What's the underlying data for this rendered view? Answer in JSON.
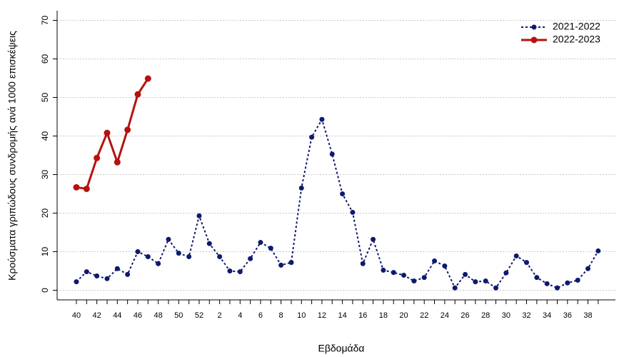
{
  "chart_data": {
    "type": "line",
    "x_label": "Εβδομάδα",
    "y_label": "Κρούσματα γριπώδους συνδρομής ανά 1000 επισκέψεις",
    "categories": [
      "40",
      null,
      "42",
      null,
      "44",
      null,
      "46",
      null,
      "48",
      null,
      "50",
      null,
      "52",
      null,
      "2",
      null,
      "4",
      null,
      "6",
      null,
      "8",
      null,
      "10",
      null,
      "12",
      null,
      "14",
      null,
      "16",
      null,
      "18",
      null,
      "20",
      null,
      "22",
      null,
      "24",
      null,
      "26",
      null,
      "28",
      null,
      "30",
      null,
      "32",
      null,
      "34",
      null,
      "36",
      null,
      "38",
      null
    ],
    "series": [
      {
        "name": "2021-2022",
        "color": "#0d1a6e",
        "style": "dotted",
        "values": [
          2.2,
          4.8,
          3.7,
          3.0,
          5.6,
          4.1,
          10.0,
          8.7,
          6.9,
          13.2,
          9.6,
          8.7,
          19.3,
          12.1,
          8.7,
          5.0,
          4.8,
          8.2,
          12.4,
          10.9,
          6.5,
          7.2,
          26.5,
          39.7,
          44.3,
          35.3,
          25.0,
          20.2,
          6.9,
          13.2,
          5.2,
          4.6,
          3.9,
          2.4,
          3.3,
          7.6,
          6.3,
          0.6,
          4.1,
          2.2,
          2.4,
          0.6,
          4.5,
          8.9,
          7.2,
          3.3,
          1.7,
          0.6,
          1.9,
          2.6,
          5.6,
          10.2
        ]
      },
      {
        "name": "2022-2023",
        "color": "#b5120f",
        "style": "solid",
        "values": [
          26.7,
          26.3,
          34.3,
          40.8,
          33.2,
          41.6,
          50.8,
          54.9,
          null,
          null,
          null,
          null,
          null,
          null,
          null,
          null,
          null,
          null,
          null,
          null,
          null,
          null,
          null,
          null,
          null,
          null,
          null,
          null,
          null,
          null,
          null,
          null,
          null,
          null,
          null,
          null,
          null,
          null,
          null,
          null,
          null,
          null,
          null,
          null,
          null,
          null,
          null,
          null,
          null,
          null,
          null,
          null
        ]
      }
    ],
    "ylim": [
      -2.5,
      72.5
    ],
    "yticks": [
      0,
      10,
      20,
      30,
      40,
      50,
      60,
      70
    ],
    "grid": true,
    "legend": "top-right"
  }
}
